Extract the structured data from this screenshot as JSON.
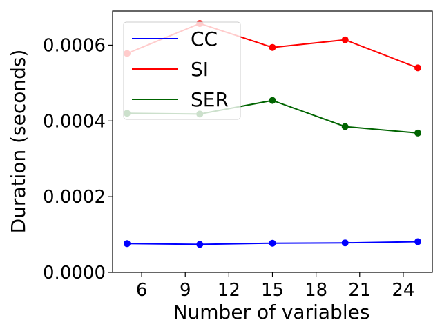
{
  "chart_data": {
    "type": "line",
    "title": "",
    "xlabel": "Number of variables",
    "ylabel": "Duration (seconds)",
    "x": [
      5,
      10,
      15,
      20,
      25
    ],
    "xticks": [
      6,
      9,
      12,
      15,
      18,
      21,
      24
    ],
    "xtick_labels": [
      "6",
      "9",
      "12",
      "15",
      "18",
      "21",
      "24"
    ],
    "yticks": [
      0,
      0.0002,
      0.0004,
      0.0006
    ],
    "ytick_labels": [
      "0.0000",
      "0.0002",
      "0.0004",
      "0.0006"
    ],
    "xlim": [
      4.0,
      26.0
    ],
    "ylim": [
      0,
      0.00069
    ],
    "grid": false,
    "legend_position": "top-left",
    "series": [
      {
        "name": "CC",
        "color": "#0000ff",
        "values": [
          7.6e-05,
          7.4e-05,
          7.7e-05,
          7.8e-05,
          8.1e-05
        ]
      },
      {
        "name": "SI",
        "color": "#ff0000",
        "values": [
          0.000578,
          0.000657,
          0.000594,
          0.000614,
          0.00054
        ]
      },
      {
        "name": "SER",
        "color": "#006400",
        "values": [
          0.00042,
          0.000418,
          0.000454,
          0.000385,
          0.000368
        ]
      }
    ]
  }
}
